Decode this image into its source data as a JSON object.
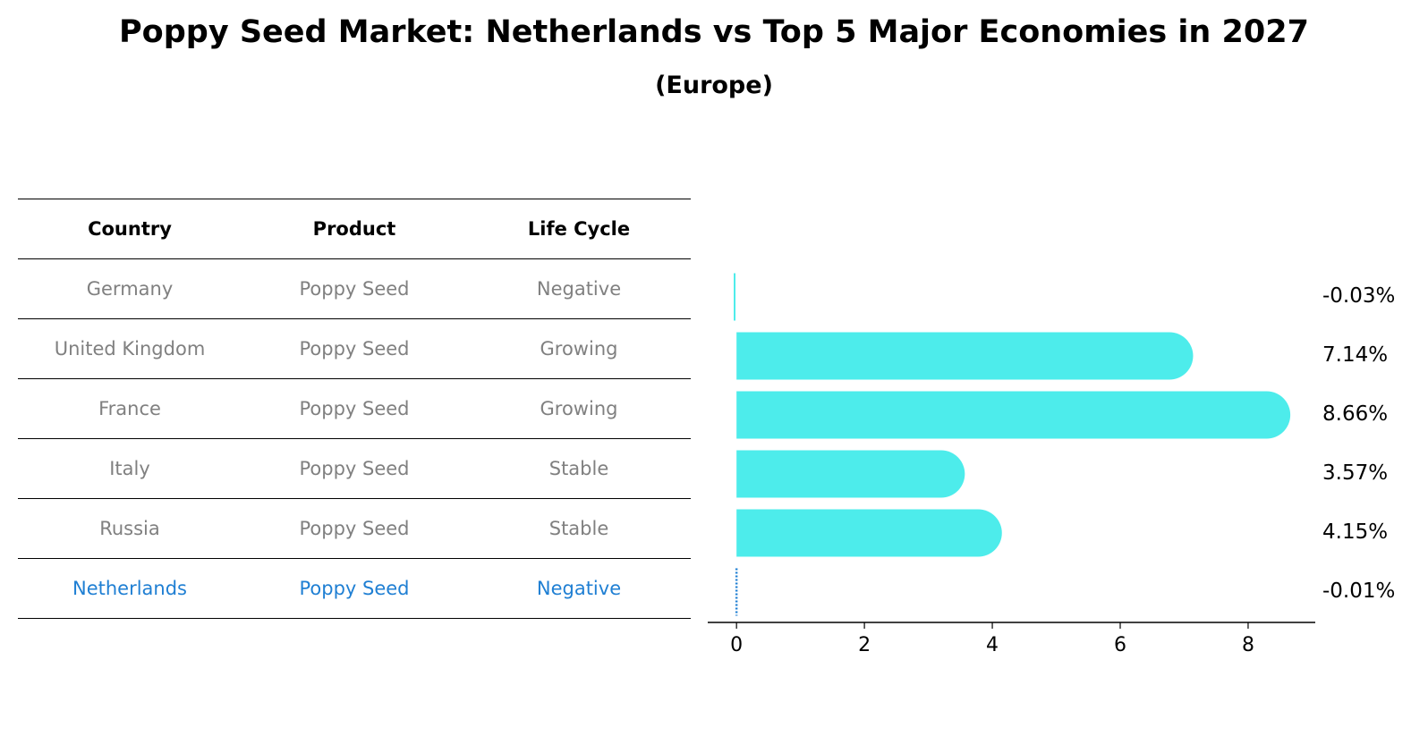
{
  "title": "Poppy Seed Market: Netherlands vs Top 5 Major Economies in 2027",
  "subtitle": "(Europe)",
  "table": {
    "headers": [
      "Country",
      "Product",
      "Life Cycle"
    ],
    "rows": [
      {
        "country": "Germany",
        "product": "Poppy Seed",
        "life_cycle": "Negative"
      },
      {
        "country": "United Kingdom",
        "product": "Poppy Seed",
        "life_cycle": "Growing"
      },
      {
        "country": "France",
        "product": "Poppy Seed",
        "life_cycle": "Growing"
      },
      {
        "country": "Italy",
        "product": "Poppy Seed",
        "life_cycle": "Stable"
      },
      {
        "country": "Russia",
        "product": "Poppy Seed",
        "life_cycle": "Stable"
      },
      {
        "country": "Netherlands",
        "product": "Poppy Seed",
        "life_cycle": "Negative"
      }
    ],
    "highlight_color": "#1f7fd3",
    "text_color": "#808080"
  },
  "chart_data": {
    "type": "bar",
    "orientation": "horizontal",
    "categories": [
      "Germany",
      "United Kingdom",
      "France",
      "Italy",
      "Russia",
      "Netherlands"
    ],
    "values": [
      -0.03,
      7.14,
      8.66,
      3.57,
      4.15,
      -0.01
    ],
    "value_labels": [
      "-0.03%",
      "7.14%",
      "8.66%",
      "3.57%",
      "4.15%",
      "-0.01%"
    ],
    "xticks": [
      0,
      2,
      4,
      6,
      8
    ],
    "xlim": [
      -0.45,
      9.05
    ],
    "bar_color": "#4deceb",
    "highlight_color": "#1f7fd3",
    "grid": false
  }
}
